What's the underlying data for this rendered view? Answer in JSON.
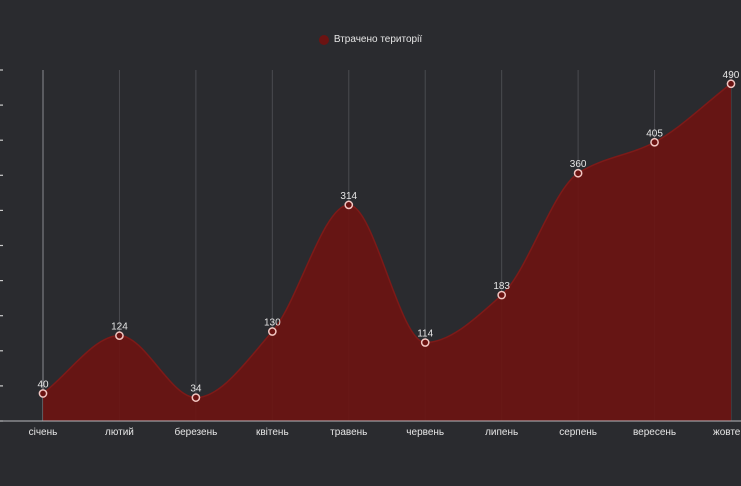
{
  "chart_data": {
    "type": "area",
    "categories": [
      "січень",
      "лютий",
      "березень",
      "квітень",
      "травень",
      "червень",
      "липень",
      "серпень",
      "вересень",
      "жовтень"
    ],
    "series": [
      {
        "name": "Втрачено території",
        "values": [
          40,
          124,
          34,
          130,
          314,
          114,
          183,
          360,
          405,
          490
        ]
      }
    ],
    "ylim": [
      0,
      510
    ],
    "grid": {
      "vertical": true,
      "horizontal": false
    },
    "legend": "top-center",
    "colors": {
      "background": "#2a2b2f",
      "area_fill": "#6b1312",
      "area_stroke": "#7d1a18",
      "grid": "#4a4b50",
      "marker": "#f2c6c2",
      "text": "#e6e6e6"
    }
  }
}
